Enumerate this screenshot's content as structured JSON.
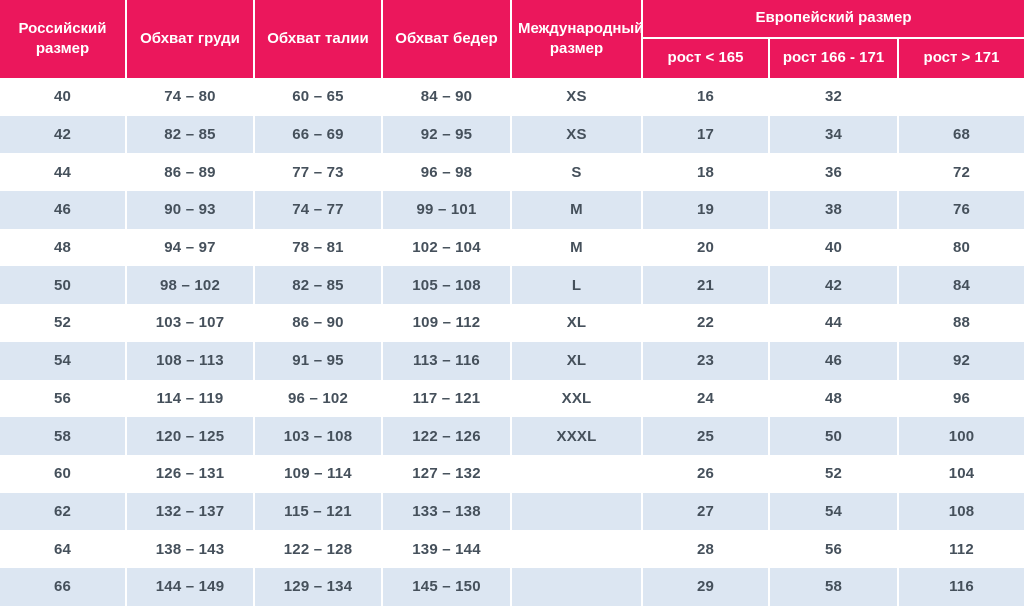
{
  "header": {
    "russian_size": "Российский размер",
    "chest": "Обхват груди",
    "waist": "Обхват талии",
    "hips": "Обхват бедер",
    "international_size": "Международный размер",
    "european_size": "Европейский размер",
    "sub_height_lt": "рост < 165",
    "sub_height_mid": "рост 166 - 171",
    "sub_height_gt": "рост > 171"
  },
  "colors": {
    "header_bg": "#EB175C",
    "header_text": "#FFFFFF",
    "row_bg": "#FFFFFF",
    "row_alt_bg": "#DCE6F2",
    "body_text": "#45505B"
  },
  "chart_data": {
    "type": "table",
    "columns": [
      "Российский размер",
      "Обхват груди",
      "Обхват талии",
      "Обхват бедер",
      "Международный размер",
      "Европейский размер — рост < 165",
      "Европейский размер — рост 166 - 171",
      "Европейский размер — рост > 171"
    ],
    "rows": [
      [
        "40",
        "74 – 80",
        "60 – 65",
        "84 – 90",
        "XS",
        "16",
        "32",
        ""
      ],
      [
        "42",
        "82 – 85",
        "66 – 69",
        "92 – 95",
        "XS",
        "17",
        "34",
        "68"
      ],
      [
        "44",
        "86 – 89",
        "77 – 73",
        "96 – 98",
        "S",
        "18",
        "36",
        "72"
      ],
      [
        "46",
        "90 – 93",
        "74 – 77",
        "99 – 101",
        "M",
        "19",
        "38",
        "76"
      ],
      [
        "48",
        "94 – 97",
        "78 – 81",
        "102 – 104",
        "M",
        "20",
        "40",
        "80"
      ],
      [
        "50",
        "98 – 102",
        "82 – 85",
        "105 – 108",
        "L",
        "21",
        "42",
        "84"
      ],
      [
        "52",
        "103 – 107",
        "86 – 90",
        "109 – 112",
        "XL",
        "22",
        "44",
        "88"
      ],
      [
        "54",
        "108 – 113",
        "91 – 95",
        "113 – 116",
        "XL",
        "23",
        "46",
        "92"
      ],
      [
        "56",
        "114 – 119",
        "96 – 102",
        "117 – 121",
        "XXL",
        "24",
        "48",
        "96"
      ],
      [
        "58",
        "120 – 125",
        "103 – 108",
        "122 – 126",
        "XXXL",
        "25",
        "50",
        "100"
      ],
      [
        "60",
        "126 – 131",
        "109 – 114",
        "127 – 132",
        "",
        "26",
        "52",
        "104"
      ],
      [
        "62",
        "132 – 137",
        "115 – 121",
        "133 – 138",
        "",
        "27",
        "54",
        "108"
      ],
      [
        "64",
        "138 – 143",
        "122 – 128",
        "139 – 144",
        "",
        "28",
        "56",
        "112"
      ],
      [
        "66",
        "144 – 149",
        "129 – 134",
        "145 – 150",
        "",
        "29",
        "58",
        "116"
      ]
    ]
  }
}
